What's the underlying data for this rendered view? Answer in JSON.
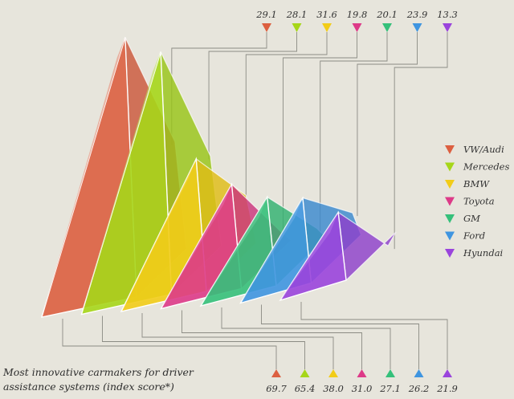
{
  "caption": "Most innovative carmakers for driver assistance systems (index score*)",
  "chart_data": {
    "type": "area",
    "title": "Most innovative carmakers for driver assistance systems (index score*)",
    "xlabel": "",
    "ylabel": "",
    "legend_position": "right",
    "series": [
      {
        "name": "VW/Audi",
        "color": "#dc5f40",
        "back": 29.1,
        "front": 69.7
      },
      {
        "name": "Mercedes",
        "color": "#a6d619",
        "back": 28.1,
        "front": 65.4
      },
      {
        "name": "BMW",
        "color": "#f2cc18",
        "back": 31.6,
        "front": 38.0
      },
      {
        "name": "Toyota",
        "color": "#dd3a88",
        "back": 19.8,
        "front": 31.0
      },
      {
        "name": "GM",
        "color": "#35c07a",
        "back": 20.1,
        "front": 27.1
      },
      {
        "name": "Ford",
        "color": "#3f95e0",
        "back": 23.9,
        "front": 26.2
      },
      {
        "name": "Hyundai",
        "color": "#9a44dc",
        "back": 13.3,
        "front": 21.9
      }
    ]
  }
}
